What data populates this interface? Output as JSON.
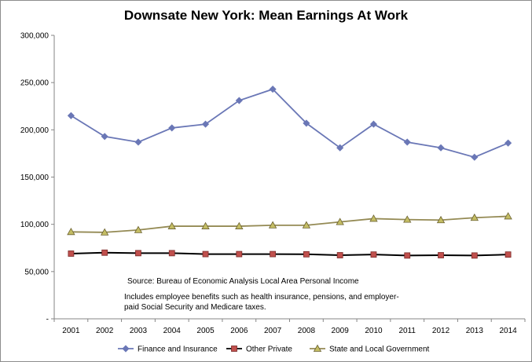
{
  "chart_data": {
    "type": "line",
    "title": "Downsate New York:  Mean Earnings At Work",
    "x": [
      "2001",
      "2002",
      "2003",
      "2004",
      "2005",
      "2006",
      "2007",
      "2008",
      "2009",
      "2010",
      "2011",
      "2012",
      "2013",
      "2014"
    ],
    "ylim": [
      0,
      300000
    ],
    "yticks": [
      0,
      50000,
      100000,
      150000,
      200000,
      250000,
      300000
    ],
    "ytick_labels": [
      "-",
      "50,000",
      "100,000",
      "150,000",
      "200,000",
      "250,000",
      "300,000"
    ],
    "grid": false,
    "legend_position": "bottom",
    "series": [
      {
        "name": "Finance and Insurance",
        "color": "#6a77b6",
        "marker": "diamond",
        "values": [
          215000,
          193000,
          187000,
          202000,
          206000,
          231000,
          243000,
          207000,
          181000,
          206000,
          187000,
          181000,
          171000,
          186000
        ]
      },
      {
        "name": "Other Private",
        "color": "#000000",
        "marker": "square",
        "marker_fill": "#c0504d",
        "values": [
          69000,
          70000,
          69500,
          69500,
          68500,
          68500,
          68500,
          68300,
          67300,
          68000,
          67000,
          67300,
          67000,
          68000
        ]
      },
      {
        "name": "State and Local Government",
        "color": "#948a54",
        "marker": "triangle",
        "marker_fill": "#c4bd64",
        "values": [
          92000,
          91500,
          94000,
          98000,
          98000,
          98000,
          99000,
          99000,
          102500,
          106000,
          105000,
          104500,
          107000,
          108500
        ]
      }
    ],
    "annotations": [
      "Source:  Bureau of Economic Analysis Local Area Personal Income",
      "Includes employee benefits such as health insurance, pensions, and employer-",
      "paid Social Security and Medicare taxes."
    ]
  }
}
